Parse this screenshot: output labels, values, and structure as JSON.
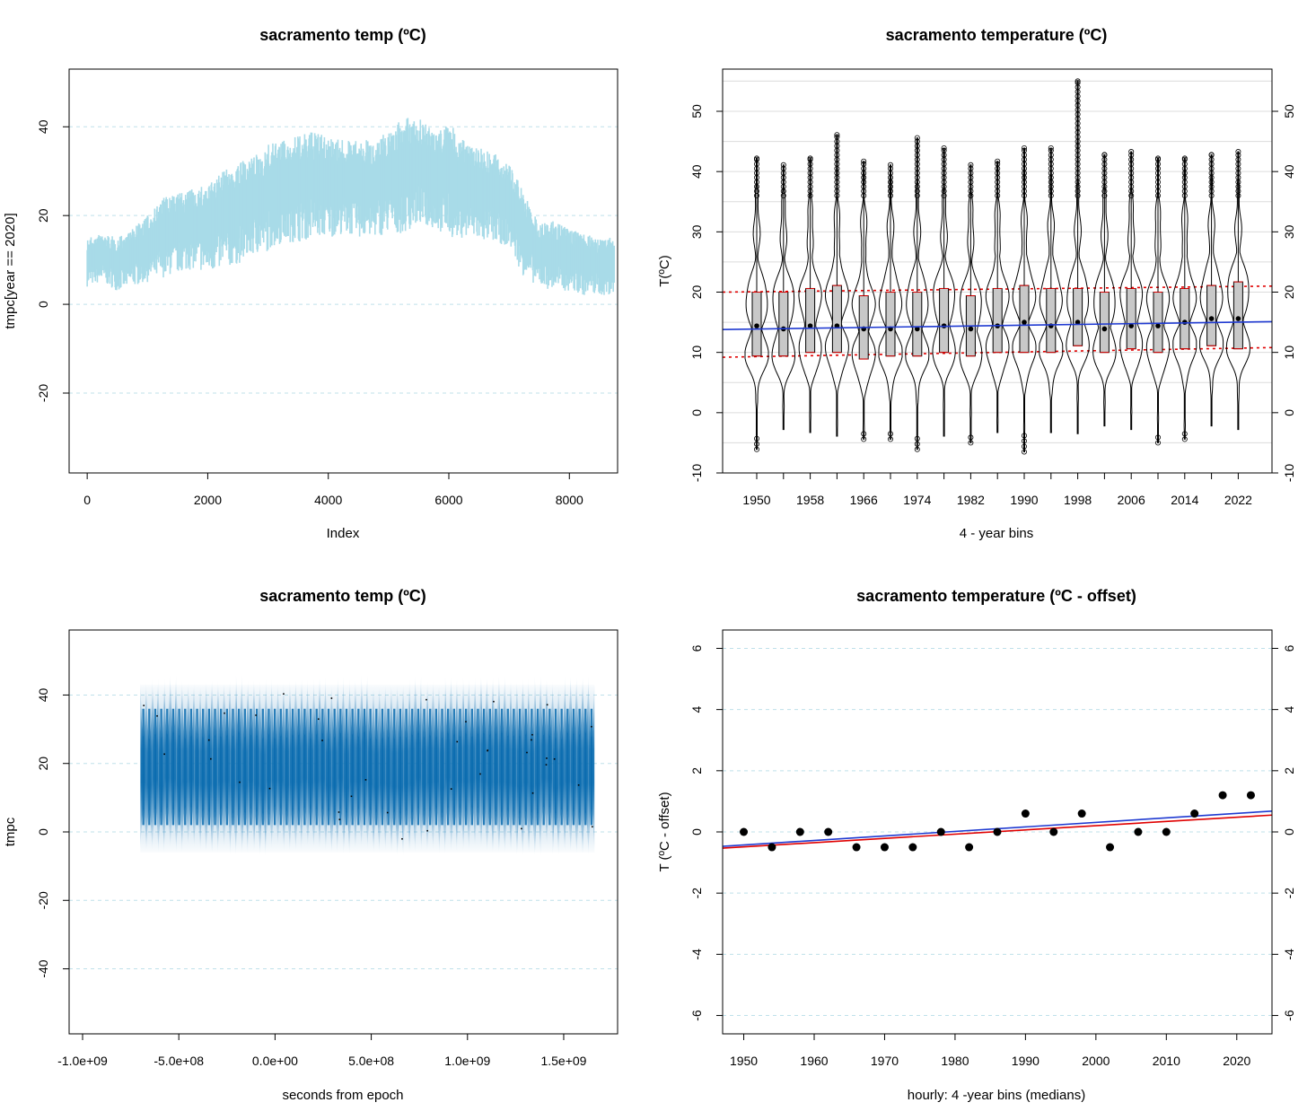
{
  "chart_data": [
    {
      "type": "line",
      "title": "sacramento temp (ºC)",
      "xlabel": "Index",
      "ylabel": "tmpc[year == 2020]",
      "xlim": [
        -300,
        8800
      ],
      "ylim": [
        -38,
        53
      ],
      "x_ticks": [
        "0",
        "2000",
        "4000",
        "6000",
        "8000"
      ],
      "y_ticks": [
        "-20",
        "0",
        "20",
        "40"
      ],
      "grid_y": true,
      "color": "#a8dbe8",
      "series": [
        {
          "x": [
            0,
            250,
            500,
            750,
            1000,
            1250,
            1500,
            1750,
            2000,
            2250,
            2500,
            2750,
            3000,
            3250,
            3500,
            3750,
            4000,
            4250,
            4500,
            4750,
            5000,
            5250,
            5500,
            5750,
            6000,
            6250,
            6500,
            6750,
            7000,
            7250,
            7500,
            7750,
            8000,
            8250,
            8500,
            8750
          ],
          "low": [
            4,
            5,
            3,
            4,
            5,
            6,
            7,
            8,
            7,
            8,
            9,
            11,
            12,
            14,
            14,
            15,
            15,
            16,
            15,
            15,
            16,
            16,
            18,
            17,
            15,
            15,
            14,
            14,
            13,
            6,
            4,
            3,
            3,
            2,
            2,
            2
          ],
          "high": [
            15,
            16,
            15,
            17,
            20,
            24,
            25,
            26,
            27,
            30,
            32,
            33,
            36,
            37,
            38,
            39,
            38,
            37,
            37,
            37,
            39,
            42,
            42,
            39,
            41,
            37,
            36,
            34,
            32,
            25,
            18,
            19,
            17,
            16,
            15,
            15
          ]
        }
      ]
    },
    {
      "type": "violin",
      "title": "sacramento temperature (ºC)",
      "xlabel": "4 - year bins",
      "ylabel": "T(ºC)",
      "ylim": [
        -10,
        57
      ],
      "categories": [
        "1950",
        "1954",
        "1958",
        "1962",
        "1966",
        "1970",
        "1974",
        "1978",
        "1982",
        "1986",
        "1990",
        "1994",
        "1998",
        "2002",
        "2006",
        "2010",
        "2014",
        "2018",
        "2022"
      ],
      "x_tick_labels": [
        "1950",
        "1958",
        "1966",
        "1974",
        "1982",
        "1990",
        "1998",
        "2006",
        "2014",
        "2022"
      ],
      "y_ticks": [
        "-10",
        "0",
        "10",
        "20",
        "30",
        "40",
        "50"
      ],
      "medians": [
        14.4,
        13.9,
        14.4,
        14.4,
        13.9,
        13.9,
        13.9,
        14.4,
        13.9,
        14.4,
        15.0,
        14.4,
        15.0,
        13.9,
        14.4,
        14.4,
        15.0,
        15.6,
        15.6
      ],
      "q1": [
        9.4,
        9.4,
        10.0,
        10.0,
        8.9,
        9.4,
        9.4,
        10.0,
        9.4,
        10.0,
        10.0,
        10.0,
        11.1,
        10.0,
        10.6,
        10.0,
        10.6,
        11.1,
        10.6
      ],
      "q3": [
        20.0,
        20.0,
        20.6,
        21.1,
        19.4,
        20.0,
        20.0,
        20.6,
        19.4,
        20.6,
        21.1,
        20.6,
        20.6,
        20.0,
        20.6,
        20.0,
        20.6,
        21.1,
        21.7
      ],
      "min": [
        -6.1,
        -2.8,
        -3.3,
        -3.9,
        -4.4,
        -4.4,
        -6.1,
        -3.9,
        -5.0,
        -3.3,
        -6.5,
        -3.3,
        -3.5,
        -2.2,
        -2.8,
        -5.0,
        -4.4,
        -2.2,
        -2.8
      ],
      "max": [
        42.2,
        41.1,
        42.2,
        46.1,
        41.7,
        41.1,
        45.6,
        43.9,
        41.1,
        41.7,
        43.9,
        43.9,
        55.0,
        42.8,
        43.3,
        42.2,
        42.2,
        42.8,
        43.3
      ],
      "trend_line": {
        "color": "#1f3ad1",
        "from": 13.8,
        "to": 15.1
      },
      "upper_band": {
        "color": "#e00000",
        "from": 20.0,
        "to": 21.0
      },
      "lower_band": {
        "color": "#e00000",
        "from": 9.2,
        "to": 10.8
      },
      "grid_y": true
    },
    {
      "type": "density-strip",
      "title": "sacramento temp (ºC)",
      "xlabel": "seconds from epoch",
      "ylabel": "tmpc",
      "xlim": [
        -1070000000.0,
        1780000000.0
      ],
      "ylim": [
        -59,
        59
      ],
      "x_ticks": [
        "-1.0e+09",
        "-5.0e+08",
        "0.0e+00",
        "5.0e+08",
        "1.0e+09",
        "1.5e+09"
      ],
      "y_ticks": [
        "-40",
        "-20",
        "0",
        "20",
        "40"
      ],
      "data_range_x": [
        -700000000.0,
        1660000000.0
      ],
      "annual_cycles": 76,
      "color": "#0a6cb0",
      "grid_y": true
    },
    {
      "type": "scatter",
      "title": "sacramento temperature (ºC - offset)",
      "xlabel": "hourly:  4 -year bins (medians)",
      "ylabel": "T (ºC - offset)",
      "xlim": [
        1947,
        2025
      ],
      "ylim": [
        -6.6,
        6.6
      ],
      "x_ticks": [
        "1950",
        "1960",
        "1970",
        "1980",
        "1990",
        "2000",
        "2010",
        "2020"
      ],
      "y_ticks": [
        "-6",
        "-4",
        "-2",
        "0",
        "2",
        "4",
        "6"
      ],
      "x": [
        1950,
        1954,
        1958,
        1962,
        1966,
        1970,
        1974,
        1978,
        1982,
        1986,
        1990,
        1994,
        1998,
        2002,
        2006,
        2010,
        2014,
        2018,
        2022
      ],
      "y": [
        0,
        -0.5,
        0,
        0,
        -0.5,
        -0.5,
        -0.5,
        0,
        -0.5,
        0,
        0.6,
        0,
        0.6,
        -0.5,
        0,
        0,
        0.6,
        1.2,
        1.2
      ],
      "fits": [
        {
          "color": "#1f3ad1",
          "from": -0.47,
          "to": 0.68
        },
        {
          "color": "#e00000",
          "from": -0.53,
          "to": 0.55
        }
      ],
      "grid_y": true
    }
  ]
}
